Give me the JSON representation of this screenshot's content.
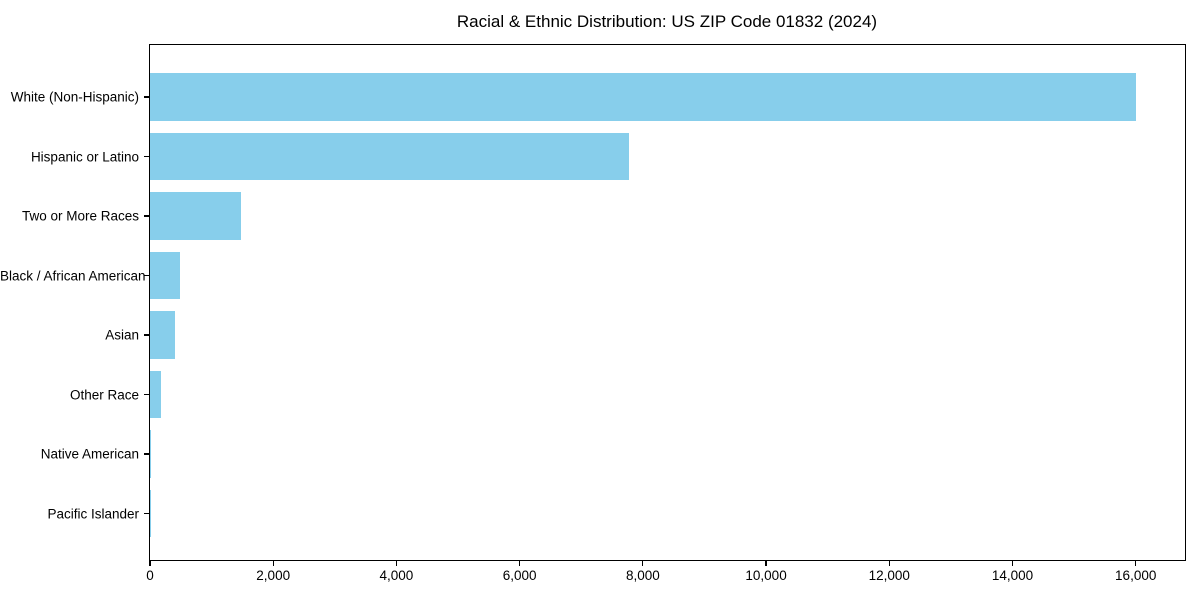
{
  "chart_data": {
    "type": "bar",
    "orientation": "horizontal",
    "title": "Racial & Ethnic Distribution: US ZIP Code 01832 (2024)",
    "categories": [
      "White (Non-Hispanic)",
      "Hispanic or Latino",
      "Two or More Races",
      "Black / African American",
      "Asian",
      "Other Race",
      "Native American",
      "Pacific Islander"
    ],
    "values": [
      16000,
      7770,
      1480,
      480,
      400,
      180,
      20,
      10
    ],
    "title_text_color": "#000000",
    "xlabel": "",
    "ylabel": "",
    "xlim": [
      0,
      16800
    ],
    "xticks": [
      0,
      2000,
      4000,
      6000,
      8000,
      10000,
      12000,
      14000,
      16000
    ],
    "xtick_labels": [
      "0",
      "2,000",
      "4,000",
      "6,000",
      "8,000",
      "10,000",
      "12,000",
      "14,000",
      "16,000"
    ],
    "grid": false,
    "legend": "none",
    "bar_color": "#87CEEB",
    "axis_color": "#000000"
  }
}
